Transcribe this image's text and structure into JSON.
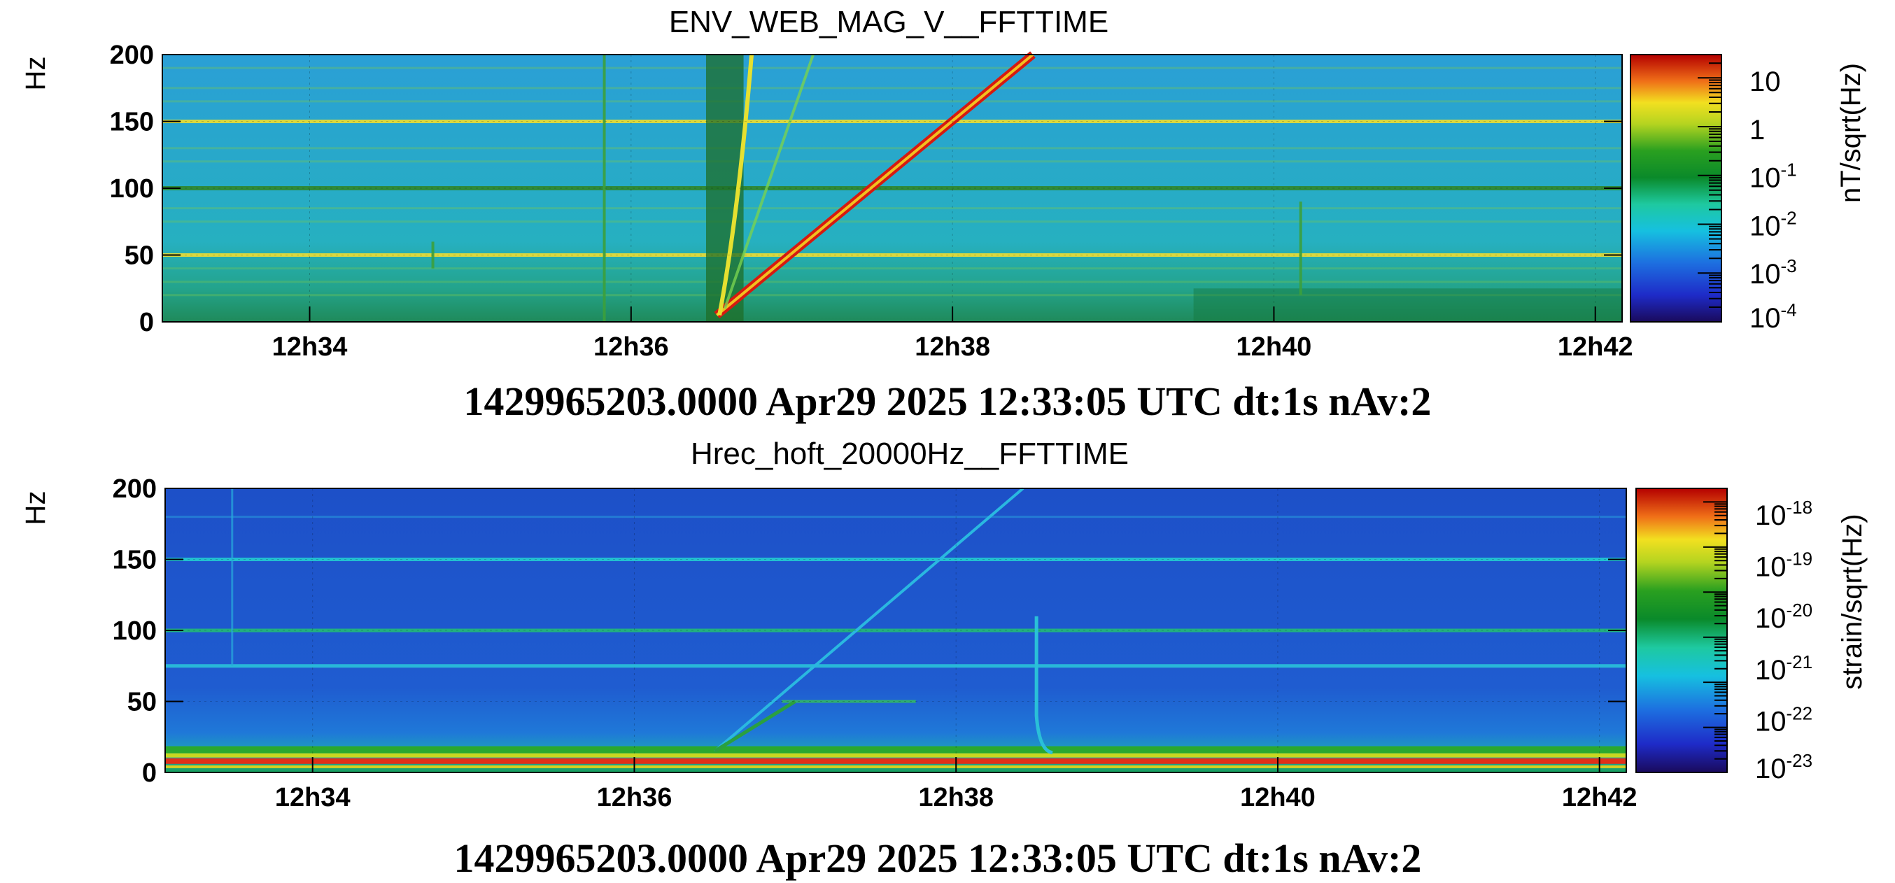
{
  "chart_data": [
    {
      "type": "heatmap",
      "title": "ENV_WEB_MAG_V__FFTTIME",
      "ylabel": "Hz",
      "yticks": [
        "0",
        "50",
        "100",
        "150",
        "200"
      ],
      "ylim": [
        0,
        200
      ],
      "xticks": [
        "12h34",
        "12h36",
        "12h38",
        "12h40",
        "12h42"
      ],
      "xlim": [
        "12:33:05",
        "12:42:10"
      ],
      "colorbar": {
        "label": "nT/sqrt(Hz)",
        "scale": "log",
        "range": [
          0.0001,
          30
        ],
        "ticks": [
          {
            "base": "10",
            "exp": ""
          },
          {
            "base": "1",
            "exp": ""
          },
          {
            "base": "10",
            "exp": "-1"
          },
          {
            "base": "10",
            "exp": "-2"
          },
          {
            "base": "10",
            "exp": "-3"
          },
          {
            "base": "10",
            "exp": "-4"
          }
        ]
      },
      "colormap": "rainbow",
      "background_color": "#2aa8d4",
      "footer": "1429965203.0000 Apr29 2025 12:33:05 UTC dt:1s nAv:2"
    },
    {
      "type": "heatmap",
      "title": "Hrec_hoft_20000Hz__FFTTIME",
      "ylabel": "Hz",
      "yticks": [
        "0",
        "50",
        "100",
        "150",
        "200"
      ],
      "ylim": [
        0,
        200
      ],
      "xticks": [
        "12h34",
        "12h36",
        "12h38",
        "12h40",
        "12h42"
      ],
      "xlim": [
        "12:33:05",
        "12:42:10"
      ],
      "colorbar": {
        "label": "strain/sqrt(Hz)",
        "scale": "log",
        "range": [
          1e-24,
          2e-18
        ],
        "ticks": [
          {
            "base": "10",
            "exp": "-18"
          },
          {
            "base": "10",
            "exp": "-19"
          },
          {
            "base": "10",
            "exp": "-20"
          },
          {
            "base": "10",
            "exp": "-21"
          },
          {
            "base": "10",
            "exp": "-22"
          },
          {
            "base": "10",
            "exp": "-23"
          }
        ]
      },
      "colormap": "rainbow",
      "background_color": "#1f5bd0",
      "footer": "1429965203.0000 Apr29 2025 12:33:05 UTC dt:1s nAv:2"
    }
  ]
}
